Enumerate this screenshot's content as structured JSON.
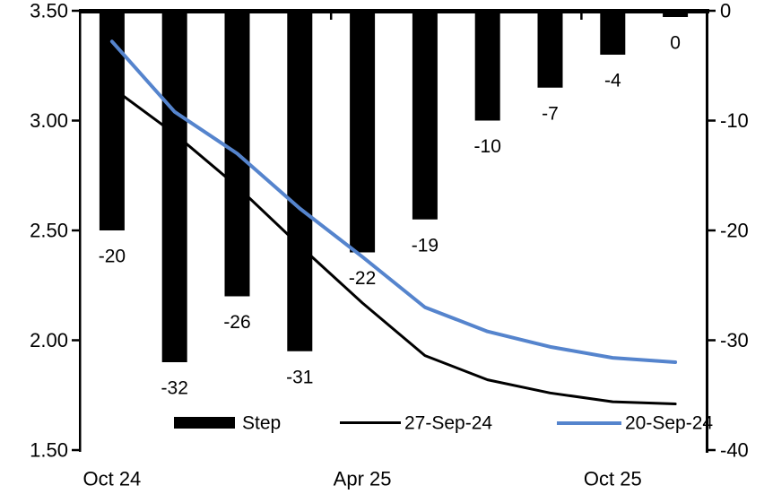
{
  "chart_data": {
    "type": "combo-bar-line",
    "title": "",
    "categories_count": 10,
    "x_axis": {
      "labels": [
        {
          "text": "Oct 24",
          "category_index": 0
        },
        {
          "text": "Apr 25",
          "category_index": 4
        },
        {
          "text": "Oct 25",
          "category_index": 8
        }
      ],
      "tick_interval": 4
    },
    "left_axis": {
      "min": 1.5,
      "max": 3.5,
      "ticks": [
        {
          "value": 3.5,
          "label": "3.50"
        },
        {
          "value": 3.0,
          "label": "3.00"
        },
        {
          "value": 2.5,
          "label": "2.50"
        },
        {
          "value": 2.0,
          "label": "2.00"
        },
        {
          "value": 1.5,
          "label": "1.50"
        }
      ]
    },
    "right_axis": {
      "min": -40,
      "max": 0,
      "ticks": [
        {
          "value": 0,
          "label": "0"
        },
        {
          "value": -10,
          "label": "-10"
        },
        {
          "value": -20,
          "label": "-20"
        },
        {
          "value": -30,
          "label": "-30"
        },
        {
          "value": -40,
          "label": "-40"
        }
      ]
    },
    "series": [
      {
        "name": "Step",
        "type": "bar",
        "axis": "right",
        "color": "#000000",
        "values": [
          -20,
          -32,
          -26,
          -31,
          -22,
          -19,
          -10,
          -7,
          -4,
          0
        ],
        "data_labels": [
          "-20",
          "-32",
          "-26",
          "-31",
          "-22",
          "-19",
          "-10",
          "-7",
          "-4",
          "0"
        ]
      },
      {
        "name": "27-Sep-24",
        "type": "line",
        "axis": "left",
        "color": "#000000",
        "stroke_width": 3,
        "values": [
          3.15,
          2.94,
          2.7,
          2.43,
          2.17,
          1.93,
          1.82,
          1.76,
          1.72,
          1.71
        ]
      },
      {
        "name": "20-Sep-24",
        "type": "line",
        "axis": "left",
        "color": "#5584CD",
        "stroke_width": 4,
        "values": [
          3.36,
          3.04,
          2.85,
          2.6,
          2.38,
          2.15,
          2.04,
          1.97,
          1.92,
          1.9
        ]
      }
    ],
    "legend": {
      "position": "bottom",
      "entries": [
        "Step",
        "27-Sep-24",
        "20-Sep-24"
      ]
    },
    "colors": {
      "background": "#ffffff",
      "axis": "#000000",
      "text": "#000000",
      "accent_blue": "#5584CD"
    }
  }
}
